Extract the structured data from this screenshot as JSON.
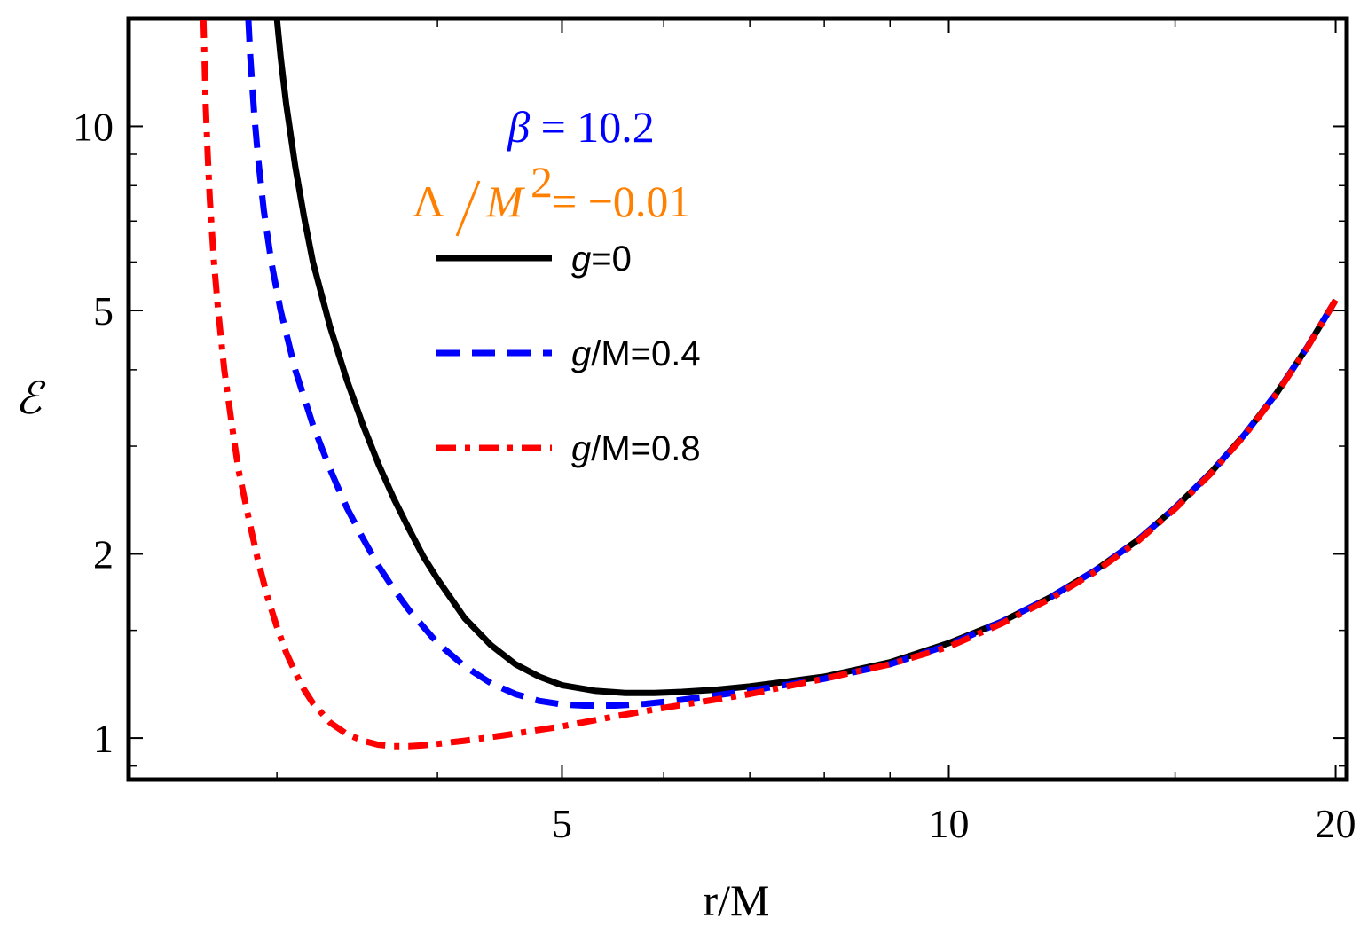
{
  "chart_data": {
    "type": "line",
    "xlabel": "r/M",
    "ylabel": "ℰ",
    "x_scale": "log",
    "y_scale": "log",
    "xlim": [
      2.3,
      20.4
    ],
    "ylim": [
      0.855,
      15.0
    ],
    "x_ticks": [
      {
        "value": 5,
        "label": "5"
      },
      {
        "value": 10,
        "label": "10"
      },
      {
        "value": 20,
        "label": "20"
      }
    ],
    "x_minor_ticks": [
      3,
      4,
      6,
      7,
      8,
      9,
      15
    ],
    "y_ticks": [
      {
        "value": 1,
        "label": "1"
      },
      {
        "value": 2,
        "label": "2"
      },
      {
        "value": 5,
        "label": "5"
      },
      {
        "value": 10,
        "label": "10"
      }
    ],
    "y_minor_ticks": [
      0.9,
      1.5,
      3,
      4,
      6,
      7,
      8,
      9
    ],
    "annotations": {
      "beta": {
        "symbol": "β",
        "text": " = 10.2",
        "color": "#0000ff"
      },
      "lambda": {
        "symbol": "Λ",
        "den": "M",
        "exp": "2",
        "text": " = −0.01",
        "color": "#ff8000"
      }
    },
    "series": [
      {
        "name": "g=0",
        "legend_italic": "g",
        "legend_rest": "=0",
        "color": "#000000",
        "dash": "none",
        "points": [
          [
            3.0,
            15.0
          ],
          [
            3.02,
            13.0
          ],
          [
            3.05,
            10.9
          ],
          [
            3.1,
            8.6
          ],
          [
            3.15,
            7.1
          ],
          [
            3.2,
            6.0
          ],
          [
            3.3,
            4.7
          ],
          [
            3.4,
            3.85
          ],
          [
            3.5,
            3.25
          ],
          [
            3.6,
            2.8
          ],
          [
            3.7,
            2.46
          ],
          [
            3.8,
            2.2
          ],
          [
            3.9,
            1.98
          ],
          [
            4.0,
            1.82
          ],
          [
            4.2,
            1.57
          ],
          [
            4.4,
            1.42
          ],
          [
            4.6,
            1.32
          ],
          [
            4.8,
            1.26
          ],
          [
            5.0,
            1.22
          ],
          [
            5.3,
            1.195
          ],
          [
            5.6,
            1.185
          ],
          [
            5.9,
            1.185
          ],
          [
            6.2,
            1.19
          ],
          [
            6.6,
            1.2
          ],
          [
            7.0,
            1.215
          ],
          [
            8.0,
            1.26
          ],
          [
            9.0,
            1.33
          ],
          [
            10.0,
            1.43
          ],
          [
            11.0,
            1.55
          ],
          [
            12.0,
            1.7
          ],
          [
            13.0,
            1.88
          ],
          [
            14.0,
            2.1
          ],
          [
            15.0,
            2.38
          ],
          [
            16.0,
            2.72
          ],
          [
            17.0,
            3.14
          ],
          [
            18.0,
            3.67
          ],
          [
            19.0,
            4.35
          ],
          [
            20.0,
            5.2
          ]
        ]
      },
      {
        "name": "g/M=0.4",
        "legend_italic": "g",
        "legend_rest": "/M=0.4",
        "color": "#0000ff",
        "dash": "26,14",
        "points": [
          [
            2.85,
            15.0
          ],
          [
            2.86,
            13.0
          ],
          [
            2.88,
            10.5
          ],
          [
            2.9,
            8.9
          ],
          [
            2.93,
            7.3
          ],
          [
            2.97,
            6.0
          ],
          [
            3.02,
            5.0
          ],
          [
            3.1,
            4.0
          ],
          [
            3.2,
            3.25
          ],
          [
            3.3,
            2.75
          ],
          [
            3.4,
            2.38
          ],
          [
            3.5,
            2.12
          ],
          [
            3.6,
            1.91
          ],
          [
            3.7,
            1.75
          ],
          [
            3.8,
            1.62
          ],
          [
            4.0,
            1.43
          ],
          [
            4.2,
            1.31
          ],
          [
            4.4,
            1.23
          ],
          [
            4.6,
            1.18
          ],
          [
            4.8,
            1.15
          ],
          [
            5.0,
            1.135
          ],
          [
            5.2,
            1.13
          ],
          [
            5.5,
            1.13
          ],
          [
            5.8,
            1.137
          ],
          [
            6.1,
            1.15
          ],
          [
            6.5,
            1.17
          ],
          [
            7.0,
            1.195
          ],
          [
            8.0,
            1.25
          ],
          [
            9.0,
            1.32
          ],
          [
            10.0,
            1.42
          ],
          [
            11.0,
            1.55
          ],
          [
            12.0,
            1.7
          ],
          [
            13.0,
            1.88
          ],
          [
            14.0,
            2.1
          ],
          [
            15.0,
            2.38
          ],
          [
            16.0,
            2.72
          ],
          [
            17.0,
            3.14
          ],
          [
            18.0,
            3.67
          ],
          [
            19.0,
            4.35
          ],
          [
            20.0,
            5.2
          ]
        ]
      },
      {
        "name": "g/M=0.8",
        "legend_italic": "g",
        "legend_rest": "/M=0.8",
        "color": "#ff0000",
        "dash": "22,10,6,10",
        "points": [
          [
            2.63,
            15.0
          ],
          [
            2.635,
            13.0
          ],
          [
            2.64,
            11.0
          ],
          [
            2.65,
            9.0
          ],
          [
            2.66,
            7.6
          ],
          [
            2.68,
            6.0
          ],
          [
            2.7,
            5.0
          ],
          [
            2.73,
            4.0
          ],
          [
            2.77,
            3.2
          ],
          [
            2.8,
            2.75
          ],
          [
            2.85,
            2.3
          ],
          [
            2.9,
            1.95
          ],
          [
            2.95,
            1.7
          ],
          [
            3.0,
            1.52
          ],
          [
            3.05,
            1.38
          ],
          [
            3.1,
            1.28
          ],
          [
            3.15,
            1.2
          ],
          [
            3.2,
            1.14
          ],
          [
            3.3,
            1.06
          ],
          [
            3.4,
            1.015
          ],
          [
            3.5,
            0.99
          ],
          [
            3.6,
            0.975
          ],
          [
            3.7,
            0.97
          ],
          [
            3.8,
            0.97
          ],
          [
            3.9,
            0.973
          ],
          [
            4.0,
            0.978
          ],
          [
            4.2,
            0.99
          ],
          [
            4.5,
            1.01
          ],
          [
            5.0,
            1.045
          ],
          [
            5.5,
            1.085
          ],
          [
            6.0,
            1.12
          ],
          [
            7.0,
            1.18
          ],
          [
            8.0,
            1.25
          ],
          [
            9.0,
            1.32
          ],
          [
            10.0,
            1.41
          ],
          [
            11.0,
            1.54
          ],
          [
            12.0,
            1.69
          ],
          [
            13.0,
            1.87
          ],
          [
            14.0,
            2.09
          ],
          [
            15.0,
            2.37
          ],
          [
            16.0,
            2.71
          ],
          [
            17.0,
            3.13
          ],
          [
            18.0,
            3.66
          ],
          [
            19.0,
            4.34
          ],
          [
            20.0,
            5.2
          ]
        ]
      }
    ]
  }
}
